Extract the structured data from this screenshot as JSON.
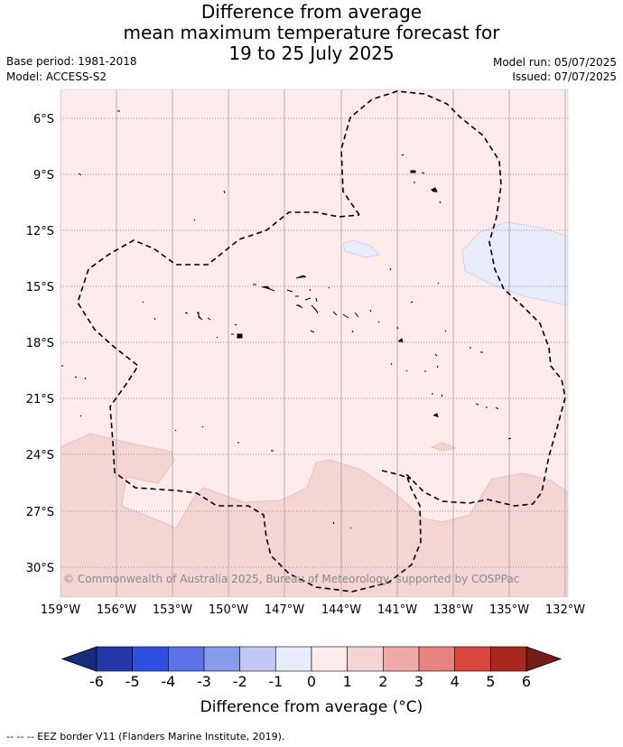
{
  "title": {
    "line1": "Difference from average",
    "line2": "mean maximum temperature forecast for",
    "line3": "19 to 25 July 2025"
  },
  "meta": {
    "base_period": "Base period: 1981-2018",
    "model": "Model: ACCESS-S2",
    "model_run": "Model run: 05/07/2025",
    "issued": "Issued: 07/07/2025"
  },
  "map": {
    "lat_labels": [
      "6°S",
      "9°S",
      "12°S",
      "15°S",
      "18°S",
      "21°S",
      "24°S",
      "27°S",
      "30°S"
    ],
    "lon_labels": [
      "159°W",
      "156°W",
      "153°W",
      "150°W",
      "147°W",
      "144°W",
      "141°W",
      "138°W",
      "135°W",
      "132°W"
    ],
    "copyright": "© Commonwealth of Australia 2025, Bureau of Meteorology, supported by COSPPac",
    "anomaly_regions": [
      {
        "category": "0 to 1",
        "color": "#fcebea"
      },
      {
        "category": "1 to 2",
        "color": "#f5d5d3"
      },
      {
        "category": "-1 to 0",
        "color": "#e8ecfa"
      }
    ]
  },
  "colorbar": {
    "ticks": [
      "-6",
      "-5",
      "-4",
      "-3",
      "-2",
      "-1",
      "0",
      "1",
      "2",
      "3",
      "4",
      "5",
      "6"
    ],
    "colors": [
      "#2438a8",
      "#2f4fe0",
      "#5b73e6",
      "#8a9aeb",
      "#c2c8f3",
      "#e8ecfa",
      "#fcebea",
      "#f5d5d3",
      "#eeaaa6",
      "#e6837e",
      "#d7473f",
      "#a82820"
    ],
    "low_extend_color": "#1a2a7a",
    "high_extend_color": "#761c18",
    "title": "Difference from average (°C)"
  },
  "footnote": "--  --  -- EEZ border V11 (Flanders Marine Institute, 2019)."
}
